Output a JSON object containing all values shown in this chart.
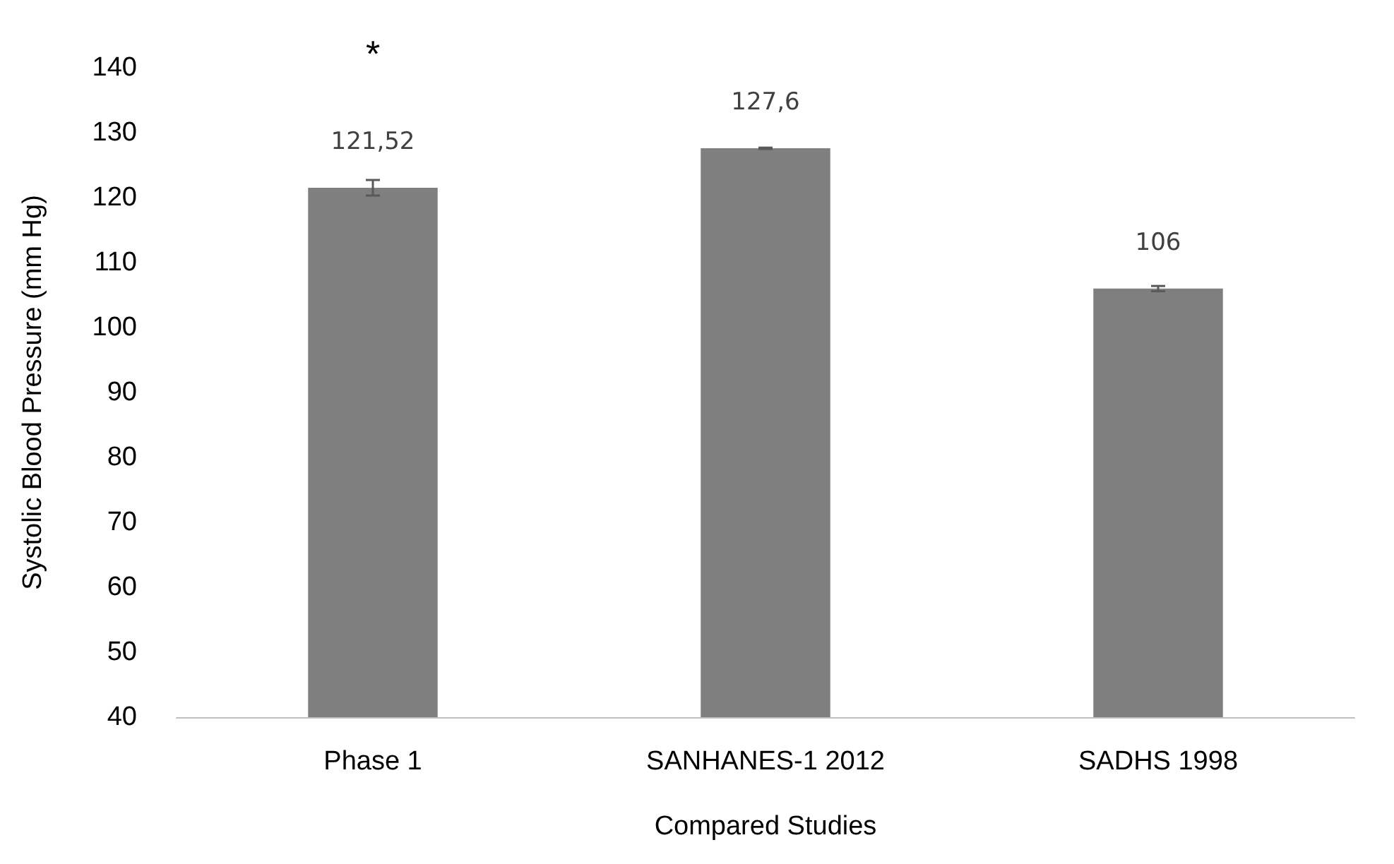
{
  "chart_data": {
    "type": "bar",
    "xlabel": "Compared Studies",
    "ylabel": "Systolic Blood Pressure (mm Hg)",
    "categories": [
      "Phase 1",
      "SANHANES-1 2012",
      "SADHS 1998"
    ],
    "values": [
      121.52,
      127.6,
      106
    ],
    "value_labels": [
      "121,52",
      "127,6",
      "106"
    ],
    "errors": [
      1.2,
      0.1,
      0.4
    ],
    "color": "#7f7f7f",
    "ylim": [
      40,
      140
    ],
    "yticks": [
      40,
      50,
      60,
      70,
      80,
      90,
      100,
      110,
      120,
      130,
      140
    ],
    "grid": false,
    "annotations": [
      "*"
    ]
  }
}
